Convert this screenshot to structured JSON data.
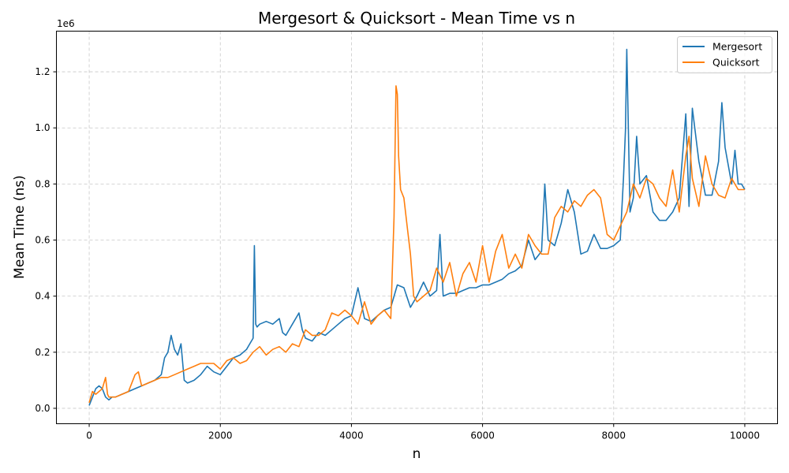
{
  "chart_data": {
    "type": "line",
    "title": "Mergesort & Quicksort - Mean Time vs n",
    "xlabel": "n",
    "ylabel": "Mean Time (ns)",
    "y_offset_label": "1e6",
    "xlim": [
      -500,
      10500
    ],
    "ylim": [
      -0.055,
      1.345
    ],
    "xticks": [
      0,
      2000,
      4000,
      6000,
      8000,
      10000
    ],
    "xtick_labels": [
      "0",
      "2000",
      "4000",
      "6000",
      "8000",
      "10000"
    ],
    "yticks": [
      0.0,
      0.2,
      0.4,
      0.6,
      0.8,
      1.0,
      1.2
    ],
    "ytick_labels": [
      "0.0",
      "0.2",
      "0.4",
      "0.6",
      "0.8",
      "1.0",
      "1.2"
    ],
    "grid": true,
    "legend_position": "top-right",
    "series": [
      {
        "name": "Mergesort",
        "color": "#1f77b4",
        "x": [
          0,
          50,
          100,
          150,
          200,
          250,
          300,
          350,
          400,
          500,
          600,
          700,
          800,
          900,
          1000,
          1100,
          1150,
          1200,
          1250,
          1300,
          1350,
          1400,
          1450,
          1500,
          1600,
          1700,
          1800,
          1900,
          2000,
          2100,
          2200,
          2300,
          2400,
          2450,
          2500,
          2520,
          2540,
          2560,
          2600,
          2700,
          2800,
          2900,
          2950,
          3000,
          3100,
          3200,
          3250,
          3300,
          3400,
          3500,
          3600,
          3700,
          3800,
          3900,
          4000,
          4100,
          4200,
          4300,
          4400,
          4500,
          4600,
          4700,
          4800,
          4900,
          5000,
          5100,
          5200,
          5300,
          5350,
          5400,
          5500,
          5600,
          5700,
          5800,
          5900,
          6000,
          6100,
          6200,
          6300,
          6400,
          6500,
          6600,
          6700,
          6800,
          6900,
          6950,
          7000,
          7100,
          7200,
          7300,
          7400,
          7500,
          7600,
          7700,
          7800,
          7900,
          8000,
          8100,
          8150,
          8180,
          8200,
          8250,
          8300,
          8350,
          8400,
          8500,
          8600,
          8700,
          8800,
          8900,
          9000,
          9100,
          9150,
          9200,
          9300,
          9400,
          9500,
          9600,
          9650,
          9700,
          9800,
          9850,
          9900,
          9950,
          10000
        ],
        "y": [
          0.01,
          0.04,
          0.07,
          0.08,
          0.07,
          0.04,
          0.03,
          0.04,
          0.04,
          0.05,
          0.06,
          0.07,
          0.08,
          0.09,
          0.1,
          0.12,
          0.18,
          0.2,
          0.26,
          0.21,
          0.19,
          0.23,
          0.1,
          0.09,
          0.1,
          0.12,
          0.15,
          0.13,
          0.12,
          0.15,
          0.18,
          0.19,
          0.21,
          0.23,
          0.25,
          0.58,
          0.3,
          0.29,
          0.3,
          0.31,
          0.3,
          0.32,
          0.27,
          0.26,
          0.3,
          0.34,
          0.28,
          0.25,
          0.24,
          0.27,
          0.26,
          0.28,
          0.3,
          0.32,
          0.33,
          0.43,
          0.32,
          0.31,
          0.33,
          0.35,
          0.36,
          0.44,
          0.43,
          0.36,
          0.4,
          0.45,
          0.4,
          0.42,
          0.62,
          0.4,
          0.41,
          0.41,
          0.42,
          0.43,
          0.43,
          0.44,
          0.44,
          0.45,
          0.46,
          0.48,
          0.49,
          0.51,
          0.6,
          0.53,
          0.56,
          0.8,
          0.6,
          0.58,
          0.66,
          0.78,
          0.7,
          0.55,
          0.56,
          0.62,
          0.57,
          0.57,
          0.58,
          0.6,
          0.82,
          0.99,
          1.28,
          0.7,
          0.75,
          0.97,
          0.8,
          0.83,
          0.7,
          0.67,
          0.67,
          0.7,
          0.75,
          1.05,
          0.72,
          1.07,
          0.88,
          0.76,
          0.76,
          0.88,
          1.09,
          0.93,
          0.8,
          0.92,
          0.8,
          0.8,
          0.78
        ]
      },
      {
        "name": "Quicksort",
        "color": "#ff7f0e",
        "x": [
          0,
          50,
          100,
          150,
          200,
          250,
          280,
          300,
          400,
          500,
          600,
          700,
          750,
          800,
          900,
          1000,
          1100,
          1200,
          1300,
          1400,
          1500,
          1600,
          1700,
          1800,
          1900,
          2000,
          2100,
          2200,
          2300,
          2400,
          2500,
          2600,
          2700,
          2800,
          2900,
          3000,
          3100,
          3200,
          3300,
          3400,
          3500,
          3600,
          3700,
          3800,
          3900,
          4000,
          4100,
          4200,
          4300,
          4400,
          4500,
          4600,
          4650,
          4680,
          4700,
          4720,
          4750,
          4800,
          4850,
          4900,
          4950,
          5000,
          5100,
          5200,
          5300,
          5400,
          5500,
          5600,
          5700,
          5800,
          5900,
          6000,
          6100,
          6200,
          6300,
          6400,
          6500,
          6600,
          6700,
          6800,
          6900,
          7000,
          7100,
          7200,
          7300,
          7400,
          7500,
          7600,
          7700,
          7800,
          7900,
          8000,
          8100,
          8200,
          8300,
          8400,
          8500,
          8600,
          8700,
          8800,
          8900,
          9000,
          9100,
          9150,
          9200,
          9300,
          9400,
          9500,
          9600,
          9700,
          9800,
          9900,
          10000
        ],
        "y": [
          0.02,
          0.06,
          0.05,
          0.06,
          0.07,
          0.11,
          0.05,
          0.04,
          0.04,
          0.05,
          0.06,
          0.12,
          0.13,
          0.08,
          0.09,
          0.1,
          0.11,
          0.11,
          0.12,
          0.13,
          0.14,
          0.15,
          0.16,
          0.16,
          0.16,
          0.14,
          0.17,
          0.18,
          0.16,
          0.17,
          0.2,
          0.22,
          0.19,
          0.21,
          0.22,
          0.2,
          0.23,
          0.22,
          0.28,
          0.26,
          0.26,
          0.28,
          0.34,
          0.33,
          0.35,
          0.33,
          0.3,
          0.38,
          0.3,
          0.33,
          0.35,
          0.32,
          0.68,
          1.15,
          1.12,
          0.9,
          0.78,
          0.75,
          0.65,
          0.55,
          0.4,
          0.38,
          0.4,
          0.42,
          0.5,
          0.45,
          0.52,
          0.4,
          0.48,
          0.52,
          0.45,
          0.58,
          0.45,
          0.56,
          0.62,
          0.5,
          0.55,
          0.5,
          0.62,
          0.58,
          0.55,
          0.55,
          0.68,
          0.72,
          0.7,
          0.74,
          0.72,
          0.76,
          0.78,
          0.75,
          0.62,
          0.6,
          0.65,
          0.7,
          0.8,
          0.75,
          0.82,
          0.8,
          0.75,
          0.72,
          0.85,
          0.7,
          0.9,
          0.97,
          0.82,
          0.72,
          0.9,
          0.8,
          0.76,
          0.75,
          0.82,
          0.78,
          0.78
        ]
      }
    ]
  }
}
